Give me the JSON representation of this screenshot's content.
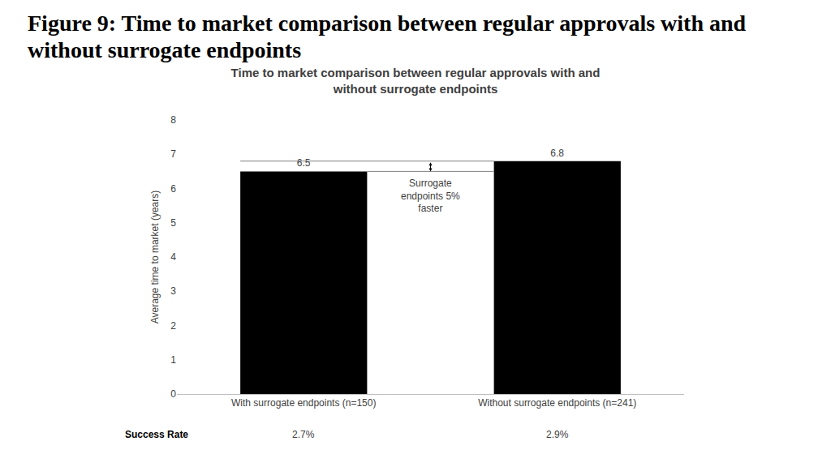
{
  "chart_data": {
    "type": "bar",
    "title": "Figure 9: Time to market comparison between regular approvals with and without surrogate endpoints",
    "subtitle": "Time to market comparison between regular approvals with and without surrogate endpoints",
    "y_label": "Average time to market (years)",
    "categories": [
      "With surrogate endpoints (n=150)",
      "Without surrogate endpoints (n=241)"
    ],
    "values": [
      6.5,
      6.8
    ],
    "color": "#000000",
    "ylim": [
      0,
      8
    ],
    "yticks": [
      0,
      1,
      2,
      3,
      4,
      5,
      6,
      7,
      8
    ],
    "grid": false,
    "data_labels": true,
    "annotations": [
      "Surrogate endpoints 5% faster"
    ],
    "success_rate": {
      "label": "Success Rate",
      "values": [
        2.7,
        2.9
      ],
      "value_labels": [
        "2.7%",
        "2.9%"
      ]
    }
  }
}
